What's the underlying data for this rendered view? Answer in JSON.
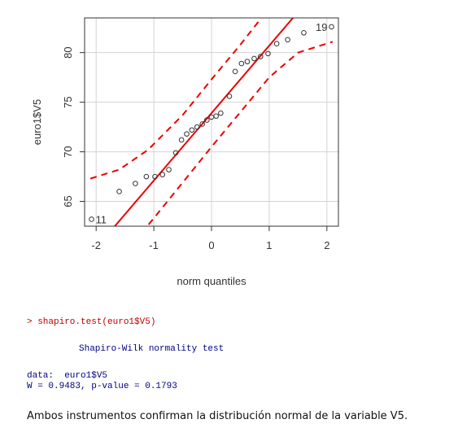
{
  "chart_data": {
    "type": "scatter",
    "subtype": "qq-plot",
    "xlabel": "norm quantiles",
    "ylabel": "euro1$V5",
    "xlim": [
      -2.2,
      2.2
    ],
    "ylim": [
      62.5,
      83.5
    ],
    "xticks": [
      -2,
      -1,
      0,
      1,
      2
    ],
    "yticks": [
      65,
      70,
      75,
      80
    ],
    "xtick_labels": [
      "-2",
      "-1",
      "0",
      "1",
      "2"
    ],
    "ytick_labels": [
      "65",
      "70",
      "75",
      "80"
    ],
    "grid": true,
    "point_color": "#333333",
    "line_color": "#ee0000",
    "points": [
      {
        "x": -2.08,
        "y": 63.2
      },
      {
        "x": -1.6,
        "y": 66.0
      },
      {
        "x": -1.32,
        "y": 66.8
      },
      {
        "x": -1.13,
        "y": 67.5
      },
      {
        "x": -0.98,
        "y": 67.5
      },
      {
        "x": -0.85,
        "y": 67.7
      },
      {
        "x": -0.74,
        "y": 68.2
      },
      {
        "x": -0.62,
        "y": 69.9
      },
      {
        "x": -0.52,
        "y": 71.2
      },
      {
        "x": -0.43,
        "y": 71.8
      },
      {
        "x": -0.34,
        "y": 72.2
      },
      {
        "x": -0.25,
        "y": 72.5
      },
      {
        "x": -0.16,
        "y": 72.8
      },
      {
        "x": -0.08,
        "y": 73.2
      },
      {
        "x": 0.0,
        "y": 73.5
      },
      {
        "x": 0.08,
        "y": 73.6
      },
      {
        "x": 0.16,
        "y": 73.9
      },
      {
        "x": 0.31,
        "y": 75.6
      },
      {
        "x": 0.41,
        "y": 78.1
      },
      {
        "x": 0.52,
        "y": 78.9
      },
      {
        "x": 0.62,
        "y": 79.1
      },
      {
        "x": 0.74,
        "y": 79.4
      },
      {
        "x": 0.85,
        "y": 79.6
      },
      {
        "x": 0.98,
        "y": 79.9
      },
      {
        "x": 1.13,
        "y": 80.9
      },
      {
        "x": 1.32,
        "y": 81.3
      },
      {
        "x": 1.6,
        "y": 82.0
      },
      {
        "x": 2.08,
        "y": 82.6
      }
    ],
    "point_labels": [
      {
        "label": "11",
        "x": -2.08,
        "y": 63.2,
        "side": "right"
      },
      {
        "label": "19",
        "x": 2.08,
        "y": 82.6,
        "side": "left"
      }
    ],
    "reference_line": {
      "intercept": 73.9,
      "slope": 6.8
    },
    "envelope_upper": [
      {
        "x": -2.1,
        "y": 67.3
      },
      {
        "x": -1.6,
        "y": 68.2
      },
      {
        "x": -1.1,
        "y": 70.2
      },
      {
        "x": -0.5,
        "y": 73.7
      },
      {
        "x": 0.0,
        "y": 77.3
      },
      {
        "x": 0.5,
        "y": 80.8
      },
      {
        "x": 1.0,
        "y": 84.5
      },
      {
        "x": 1.5,
        "y": 88.0
      },
      {
        "x": 2.1,
        "y": 92.2
      }
    ],
    "envelope_lower": [
      {
        "x": -2.1,
        "y": 55.6
      },
      {
        "x": -1.5,
        "y": 59.8
      },
      {
        "x": -1.0,
        "y": 63.3
      },
      {
        "x": -0.5,
        "y": 66.9
      },
      {
        "x": 0.0,
        "y": 70.5
      },
      {
        "x": 0.5,
        "y": 74.0
      },
      {
        "x": 1.0,
        "y": 77.5
      },
      {
        "x": 1.5,
        "y": 80.0
      },
      {
        "x": 2.1,
        "y": 81.1
      }
    ]
  },
  "console": {
    "command": "> shapiro.test(euro1$V5)",
    "test_title": "Shapiro-Wilk normality test",
    "data_line": "data:  euro1$V5",
    "stat_line": "W = 0.9483, p-value = 0.1793"
  },
  "caption": "Ambos instrumentos confirman la distribución normal de la variable V5."
}
